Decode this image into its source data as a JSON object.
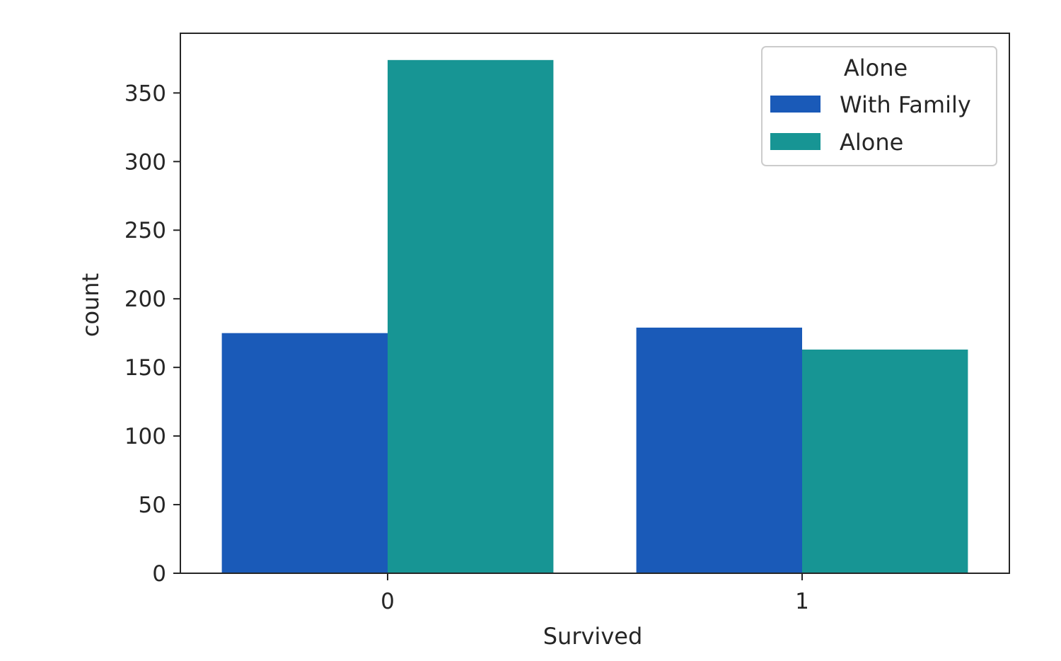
{
  "chart_data": {
    "type": "bar",
    "title": "",
    "xlabel": "Survived",
    "ylabel": "count",
    "categories": [
      "0",
      "1"
    ],
    "series": [
      {
        "name": "With Family",
        "values": [
          175,
          179
        ],
        "color": "#1a5ab8"
      },
      {
        "name": "Alone",
        "values": [
          374,
          163
        ],
        "color": "#179594"
      }
    ],
    "ylim": [
      0,
      393.5
    ],
    "yticks": [
      0,
      50,
      100,
      150,
      200,
      250,
      300,
      350
    ],
    "ytick_labels": [
      "0",
      "50",
      "100",
      "150",
      "200",
      "250",
      "300",
      "350"
    ],
    "grid": false,
    "legend": {
      "title": "Alone",
      "placement": "top-right",
      "entries": [
        "With Family",
        "Alone"
      ]
    }
  }
}
